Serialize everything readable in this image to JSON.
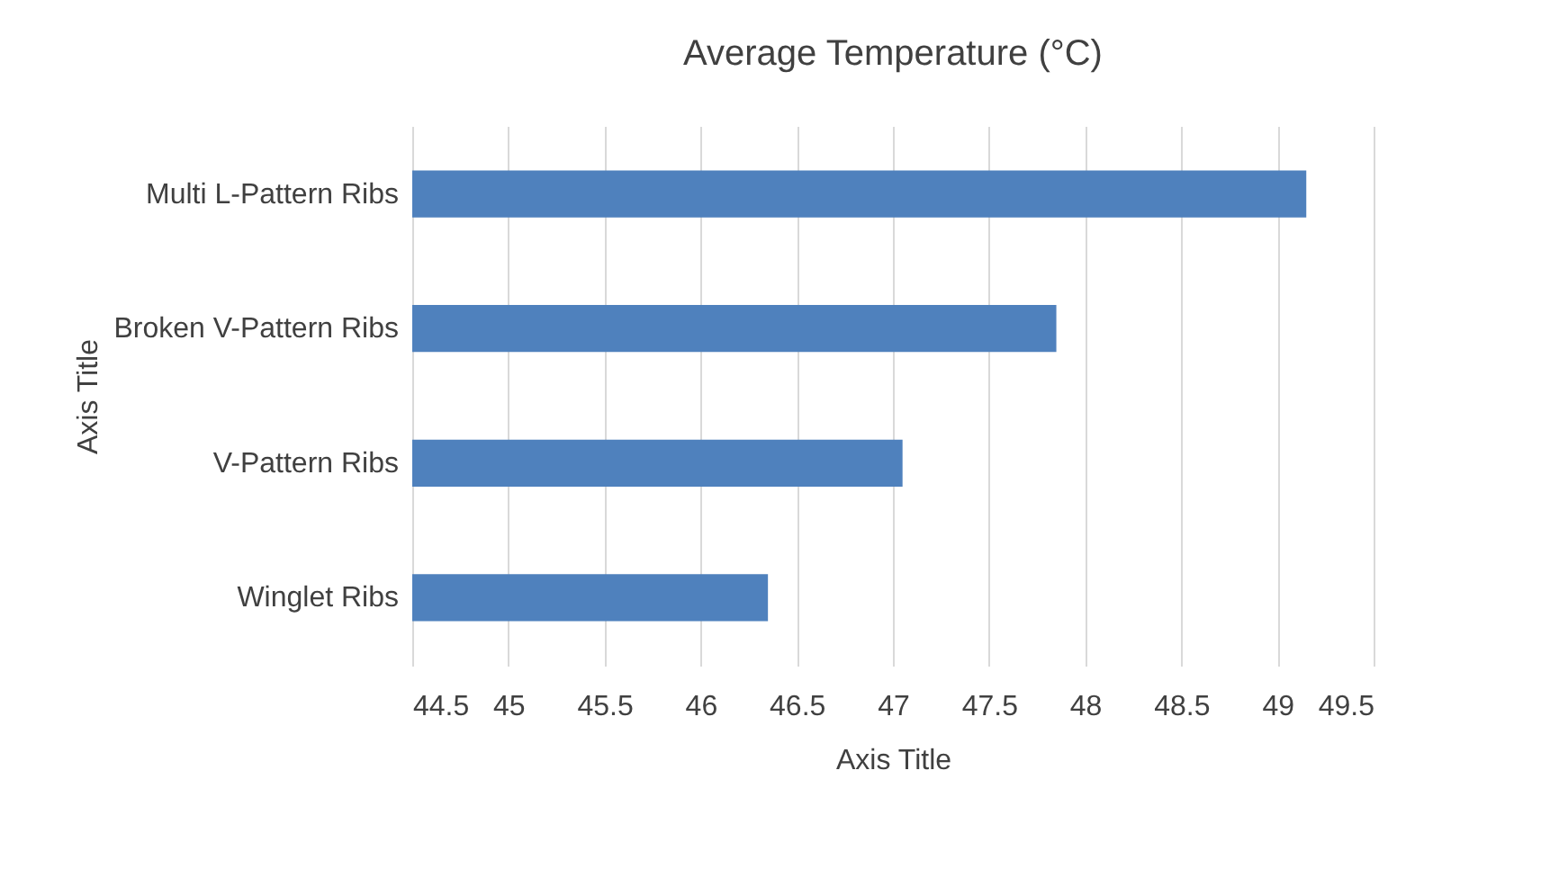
{
  "chart_data": {
    "type": "bar",
    "orientation": "horizontal",
    "title": "Average Temperature (°C)",
    "xlabel": "Axis Title",
    "ylabel": "Axis Title",
    "categories": [
      "Multi L-Pattern Ribs",
      "Broken V-Pattern Ribs",
      "V-Pattern Ribs",
      "Winglet Ribs"
    ],
    "values": [
      49.15,
      47.85,
      47.05,
      46.35
    ],
    "color": "#4f81bd",
    "xlim": [
      44.5,
      49.5
    ],
    "xticks": [
      44.5,
      45,
      45.5,
      46,
      46.5,
      47,
      47.5,
      48,
      48.5,
      49,
      49.5
    ],
    "grid": "x"
  }
}
